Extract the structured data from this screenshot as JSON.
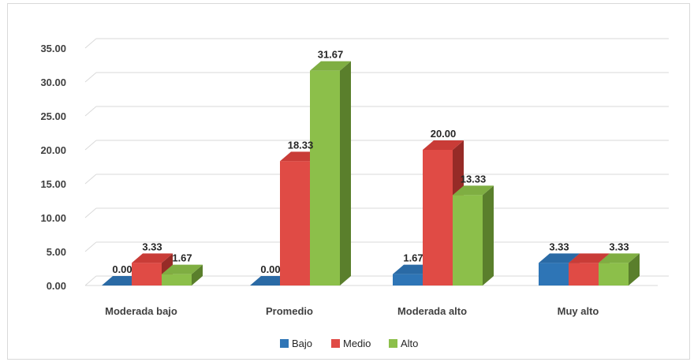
{
  "chart_data": {
    "type": "bar",
    "categories": [
      "Moderada  bajo",
      "Promedio",
      "Moderada  alto",
      "Muy alto"
    ],
    "series": [
      {
        "name": "Bajo",
        "values": [
          0.0,
          0.0,
          1.67,
          3.33
        ]
      },
      {
        "name": "Medio",
        "values": [
          3.33,
          18.33,
          20.0,
          3.33
        ]
      },
      {
        "name": "Alto",
        "values": [
          1.67,
          31.67,
          13.33,
          3.33
        ]
      }
    ],
    "data_labels": [
      [
        "0.00",
        "3.33",
        "1.67"
      ],
      [
        "0.00",
        "18.33",
        "31.67"
      ],
      [
        "1.67",
        "20.00",
        "13.33"
      ],
      [
        "3.33",
        "",
        "3.33"
      ]
    ],
    "y_ticks": [
      "0.00",
      "5.00",
      "10.00",
      "15.00",
      "20.00",
      "25.00",
      "30.00",
      "35.00"
    ],
    "ylim": [
      0,
      35
    ],
    "grid": true,
    "legend_position": "bottom",
    "style": "3d-clustered-column",
    "colors": {
      "Bajo": {
        "front": "#2e75b6",
        "top": "#2a6aa5",
        "side": "#1f4e79"
      },
      "Medio": {
        "front": "#e04b45",
        "top": "#c93c37",
        "side": "#962b27"
      },
      "Alto": {
        "front": "#8cbf4a",
        "top": "#7fae42",
        "side": "#5a7f2c"
      }
    }
  }
}
